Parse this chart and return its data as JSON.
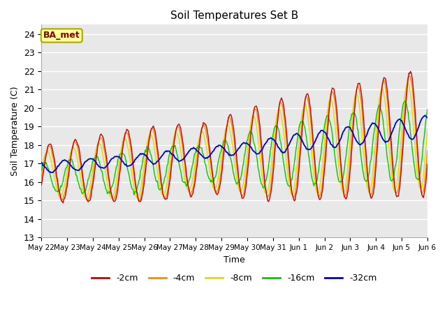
{
  "title": "Soil Temperatures Set B",
  "xlabel": "Time",
  "ylabel": "Soil Temperature (C)",
  "ylim": [
    13.0,
    24.5
  ],
  "yticks": [
    13.0,
    14.0,
    15.0,
    16.0,
    17.0,
    18.0,
    19.0,
    20.0,
    21.0,
    22.0,
    23.0,
    24.0
  ],
  "xtick_labels": [
    "May 22",
    "May 23",
    "May 24",
    "May 25",
    "May 26",
    "May 27",
    "May 28",
    "May 29",
    "May 30",
    "May 31",
    "Jun 1",
    "Jun 2",
    "Jun 3",
    "Jun 4",
    "Jun 5",
    "Jun 6"
  ],
  "legend_labels": [
    "-2cm",
    "-4cm",
    "-8cm",
    "-16cm",
    "-32cm"
  ],
  "line_colors": [
    "#cc0000",
    "#ff8800",
    "#dddd00",
    "#00cc00",
    "#0000cc"
  ],
  "annotation_text": "BA_met",
  "annotation_bg": "#ffff99",
  "annotation_border": "#aaaa00",
  "annotation_text_color": "#880000",
  "plot_bg": "#e8e8e8",
  "n_points": 480
}
